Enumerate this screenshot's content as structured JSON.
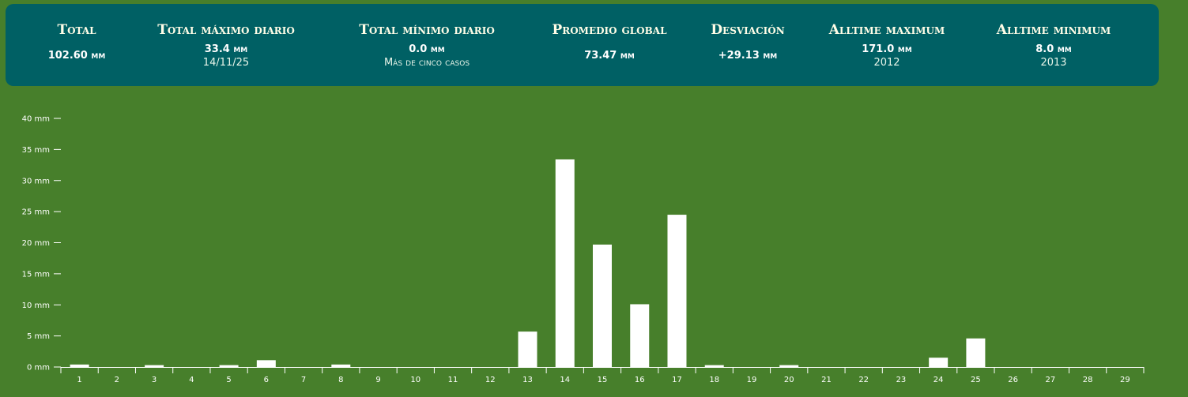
{
  "stats": [
    {
      "title": "Total",
      "value": "102.60",
      "unit": "mm",
      "sub": ""
    },
    {
      "title": "Total máximo diario",
      "value": "33.4",
      "unit": "mm",
      "sub": "14/11/25"
    },
    {
      "title": "Total mínimo diario",
      "value": "0.0",
      "unit": "mm",
      "sub": "Más de cinco casos"
    },
    {
      "title": "Promedio global",
      "value": "73.47",
      "unit": "mm",
      "sub": ""
    },
    {
      "title": "Desviación",
      "value": "+29.13",
      "unit": "mm",
      "sub": ""
    },
    {
      "title": "Alltime maximum",
      "value": "171.0",
      "unit": "mm",
      "sub": "2012"
    },
    {
      "title": "Alltime minimum",
      "value": "8.0",
      "unit": "mm",
      "sub": "2013"
    }
  ],
  "colors": {
    "background": "#477f2b",
    "panel": "#006064",
    "bar": "#ffffff",
    "axis": "#ffffff"
  },
  "chart_data": {
    "type": "bar",
    "title": "",
    "xlabel": "",
    "ylabel": "",
    "ylim": [
      0,
      40
    ],
    "y_ticks": [
      0,
      5,
      10,
      15,
      20,
      25,
      30,
      35,
      40
    ],
    "y_unit": "mm",
    "grid": false,
    "categories": [
      "1",
      "2",
      "3",
      "4",
      "5",
      "6",
      "7",
      "8",
      "9",
      "10",
      "11",
      "12",
      "13",
      "14",
      "15",
      "16",
      "17",
      "18",
      "19",
      "20",
      "21",
      "22",
      "23",
      "24",
      "25",
      "26",
      "27",
      "28",
      "29"
    ],
    "values": [
      0.4,
      0,
      0.3,
      0,
      0.3,
      1.1,
      0,
      0.4,
      0,
      0,
      0,
      0,
      5.7,
      33.4,
      19.7,
      10.1,
      24.5,
      0.3,
      0,
      0.3,
      0,
      0,
      0,
      1.5,
      4.6,
      0,
      0,
      0,
      0
    ]
  }
}
